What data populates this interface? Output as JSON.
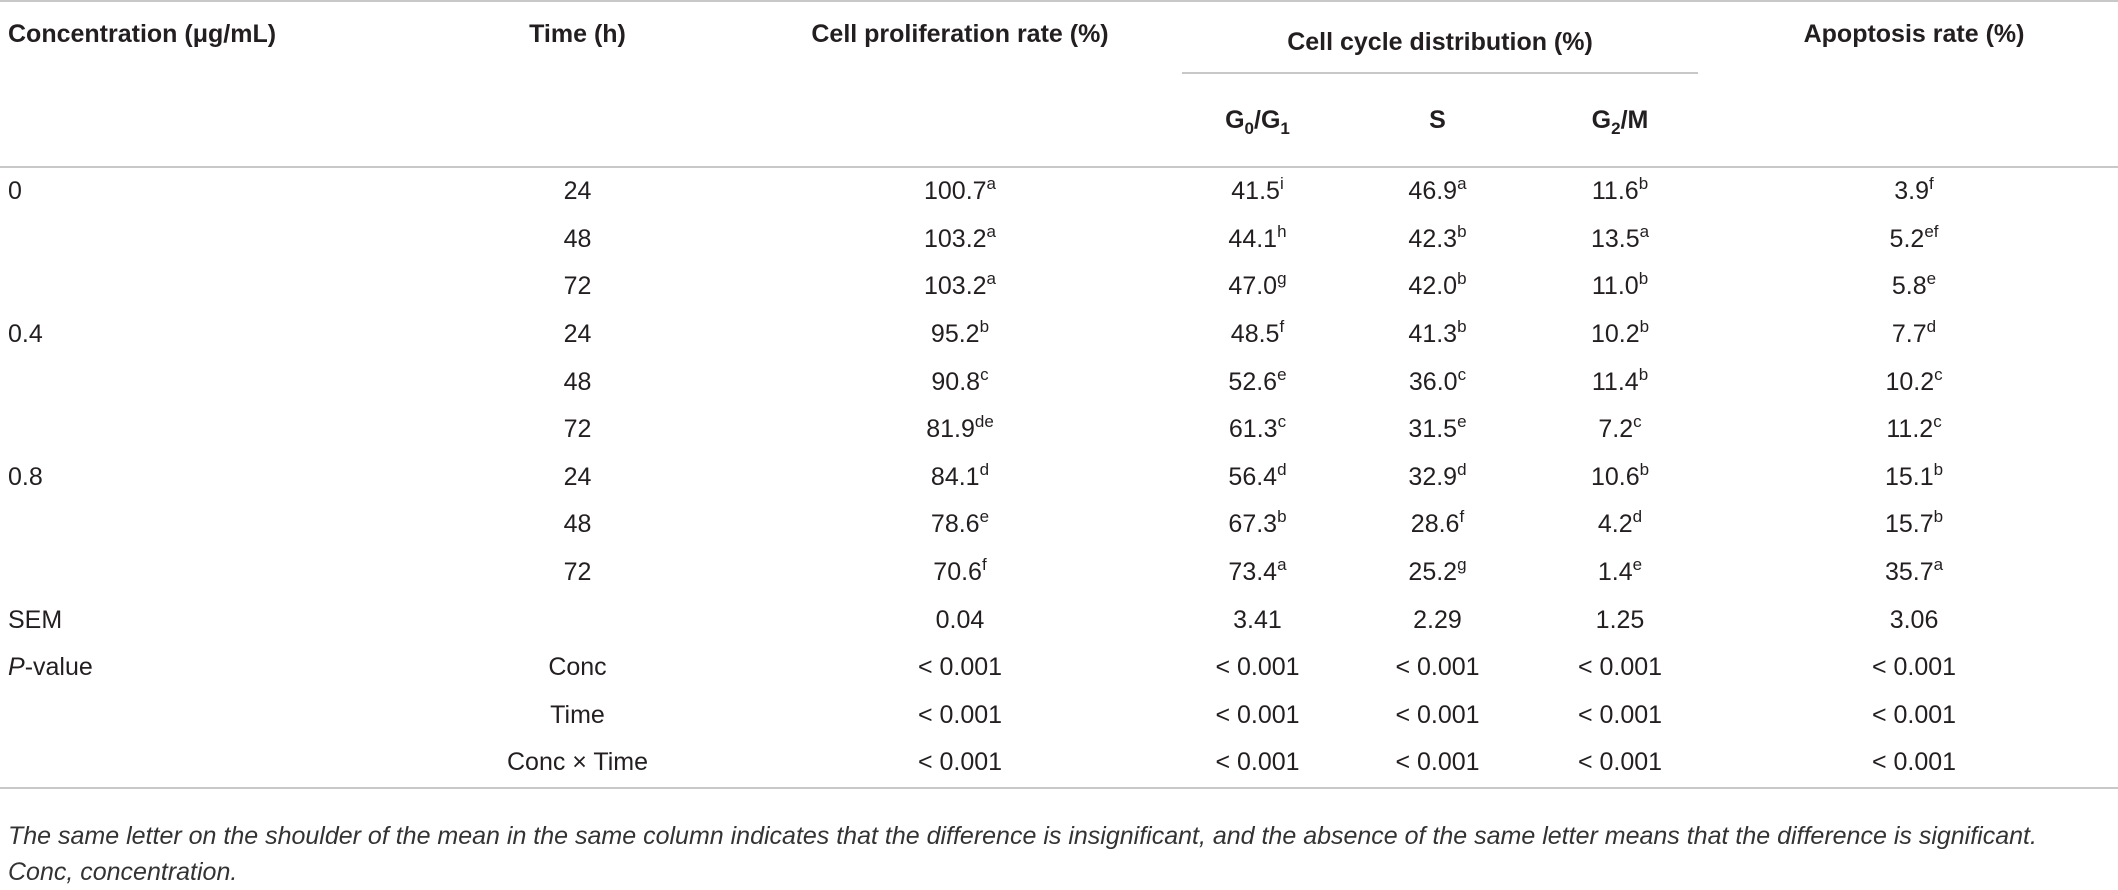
{
  "header": {
    "concentration": "Concentration (μg/mL)",
    "time": "Time (h)",
    "proliferation": "Cell proliferation rate (%)",
    "cell_cycle": "Cell cycle distribution (%)",
    "apoptosis": "Apoptosis rate (%)",
    "g0g1": {
      "a": "G",
      "b": "0",
      "c": "/G",
      "d": "1"
    },
    "s": "S",
    "g2m": {
      "a": "G",
      "b": "2",
      "c": "/M"
    }
  },
  "rows": [
    {
      "conc": "0",
      "time": "24",
      "cells": [
        [
          "100.7",
          "a"
        ],
        [
          "41.5",
          "i"
        ],
        [
          "46.9",
          "a"
        ],
        [
          "11.6",
          "b"
        ],
        [
          "3.9",
          "f"
        ]
      ]
    },
    {
      "conc": "",
      "time": "48",
      "cells": [
        [
          "103.2",
          "a"
        ],
        [
          "44.1",
          "h"
        ],
        [
          "42.3",
          "b"
        ],
        [
          "13.5",
          "a"
        ],
        [
          "5.2",
          "ef"
        ]
      ]
    },
    {
      "conc": "",
      "time": "72",
      "cells": [
        [
          "103.2",
          "a"
        ],
        [
          "47.0",
          "g"
        ],
        [
          "42.0",
          "b"
        ],
        [
          "11.0",
          "b"
        ],
        [
          "5.8",
          "e"
        ]
      ]
    },
    {
      "conc": "0.4",
      "time": "24",
      "cells": [
        [
          "95.2",
          "b"
        ],
        [
          "48.5",
          "f"
        ],
        [
          "41.3",
          "b"
        ],
        [
          "10.2",
          "b"
        ],
        [
          "7.7",
          "d"
        ]
      ]
    },
    {
      "conc": "",
      "time": "48",
      "cells": [
        [
          "90.8",
          "c"
        ],
        [
          "52.6",
          "e"
        ],
        [
          "36.0",
          "c"
        ],
        [
          "11.4",
          "b"
        ],
        [
          "10.2",
          "c"
        ]
      ]
    },
    {
      "conc": "",
      "time": "72",
      "cells": [
        [
          "81.9",
          "de"
        ],
        [
          "61.3",
          "c"
        ],
        [
          "31.5",
          "e"
        ],
        [
          "7.2",
          "c"
        ],
        [
          "11.2",
          "c"
        ]
      ]
    },
    {
      "conc": "0.8",
      "time": "24",
      "cells": [
        [
          "84.1",
          "d"
        ],
        [
          "56.4",
          "d"
        ],
        [
          "32.9",
          "d"
        ],
        [
          "10.6",
          "b"
        ],
        [
          "15.1",
          "b"
        ]
      ]
    },
    {
      "conc": "",
      "time": "48",
      "cells": [
        [
          "78.6",
          "e"
        ],
        [
          "67.3",
          "b"
        ],
        [
          "28.6",
          "f"
        ],
        [
          "4.2",
          "d"
        ],
        [
          "15.7",
          "b"
        ]
      ]
    },
    {
      "conc": "",
      "time": "72",
      "cells": [
        [
          "70.6",
          "f"
        ],
        [
          "73.4",
          "a"
        ],
        [
          "25.2",
          "g"
        ],
        [
          "1.4",
          "e"
        ],
        [
          "35.7",
          "a"
        ]
      ]
    },
    {
      "conc": "SEM",
      "time": "",
      "cells": [
        [
          "0.04",
          ""
        ],
        [
          "3.41",
          ""
        ],
        [
          "2.29",
          ""
        ],
        [
          "1.25",
          ""
        ],
        [
          "3.06",
          ""
        ]
      ]
    },
    {
      "conc_italic": "P",
      "conc": "-value",
      "time": "Conc",
      "cells": [
        [
          "< 0.001",
          ""
        ],
        [
          "< 0.001",
          ""
        ],
        [
          "< 0.001",
          ""
        ],
        [
          "< 0.001",
          ""
        ],
        [
          "< 0.001",
          ""
        ]
      ]
    },
    {
      "conc": "",
      "time": "Time",
      "cells": [
        [
          "< 0.001",
          ""
        ],
        [
          "< 0.001",
          ""
        ],
        [
          "< 0.001",
          ""
        ],
        [
          "< 0.001",
          ""
        ],
        [
          "< 0.001",
          ""
        ]
      ]
    },
    {
      "conc": "",
      "time": "Conc × Time",
      "cells": [
        [
          "< 0.001",
          ""
        ],
        [
          "< 0.001",
          ""
        ],
        [
          "< 0.001",
          ""
        ],
        [
          "< 0.001",
          ""
        ],
        [
          "< 0.001",
          ""
        ]
      ]
    }
  ],
  "footnote": "The same letter on the shoulder of the mean in the same column indicates that the difference is insignificant, and the absence of the same letter means that the difference is significant. Conc, concentration."
}
